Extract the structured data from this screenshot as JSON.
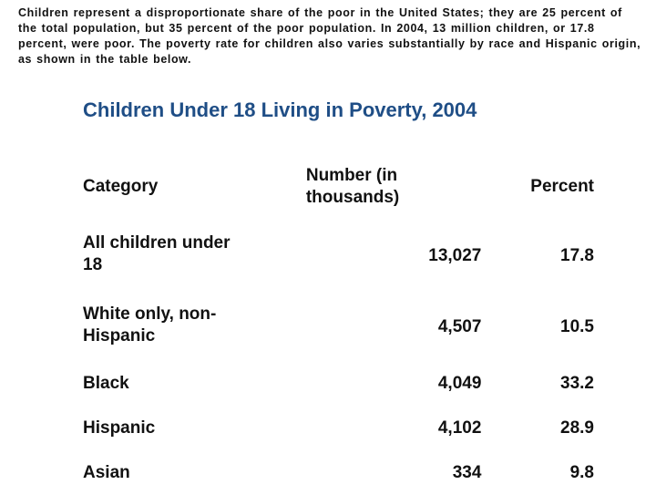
{
  "intro": "Children represent a disproportionate share of the poor in the United States; they are 25 percent of the total population, but 35 percent of the poor population. In 2004, 13 million children, or 17.8 percent, were poor. The poverty rate for children also varies substantially by race and Hispanic origin, as shown in the table below.",
  "table": {
    "title": "Children Under 18 Living in Poverty, 2004",
    "headers": {
      "category": "Category",
      "number_line1": "Number (in",
      "number_line2": "thousands)",
      "percent": "Percent"
    },
    "rows": [
      {
        "category": "All children under 18",
        "number": "13,027",
        "percent": "17.8"
      },
      {
        "category": "White only, non-Hispanic",
        "number": "4,507",
        "percent": "10.5"
      },
      {
        "category": "Black",
        "number": "4,049",
        "percent": "33.2"
      },
      {
        "category": "Hispanic",
        "number": "4,102",
        "percent": "28.9"
      },
      {
        "category": "Asian",
        "number": "334",
        "percent": "9.8"
      }
    ]
  },
  "colors": {
    "title": "#1f4e86",
    "text": "#111111",
    "background": "#ffffff"
  }
}
